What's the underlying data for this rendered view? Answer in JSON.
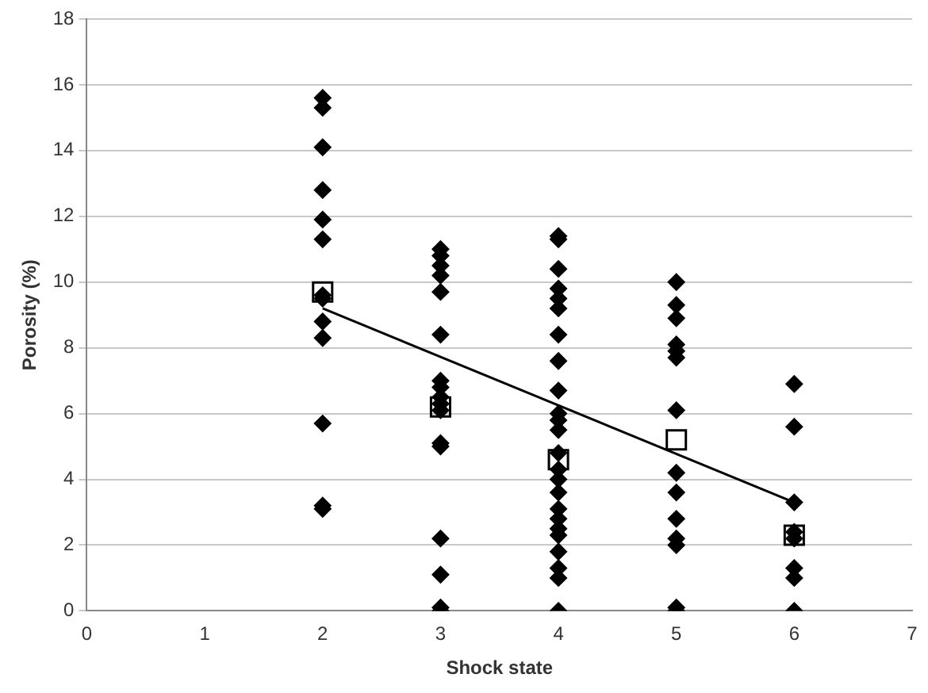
{
  "chart_data": {
    "type": "scatter",
    "xlabel": "Shock state",
    "ylabel": "Porosity (%)",
    "xlim": [
      0,
      7
    ],
    "xticks": [
      0,
      1,
      2,
      3,
      4,
      5,
      6,
      7
    ],
    "ylim": [
      0,
      18
    ],
    "yticks": [
      0,
      2,
      4,
      6,
      8,
      10,
      12,
      14,
      16,
      18
    ],
    "grid": "y",
    "legend": false,
    "series": [
      {
        "marker": "diamond",
        "color": "#000000",
        "x": [
          2,
          2,
          2,
          2,
          2,
          2,
          2,
          2,
          2,
          2,
          2,
          2,
          2,
          3,
          3,
          3,
          3,
          3,
          3,
          3,
          3,
          3,
          3,
          3,
          3,
          3,
          3,
          3,
          3,
          3,
          4,
          4,
          4,
          4,
          4,
          4,
          4,
          4,
          4,
          4,
          4,
          4,
          4,
          4,
          4,
          4,
          4,
          4,
          4,
          4,
          4,
          4,
          4,
          4,
          5,
          5,
          5,
          5,
          5,
          5,
          5,
          5,
          5,
          5,
          5,
          5,
          5,
          5,
          6,
          6,
          6,
          6,
          6,
          6,
          6,
          6
        ],
        "values": [
          15.6,
          15.3,
          14.1,
          12.8,
          11.9,
          11.3,
          9.6,
          9.5,
          8.8,
          8.3,
          5.7,
          3.2,
          3.1,
          11.0,
          10.8,
          10.5,
          10.2,
          9.7,
          8.4,
          7.0,
          6.8,
          6.5,
          6.3,
          6.1,
          5.1,
          5.0,
          2.2,
          1.1,
          0.1,
          0.0,
          11.4,
          11.3,
          10.4,
          9.8,
          9.5,
          9.2,
          8.4,
          7.6,
          6.7,
          6.0,
          5.8,
          5.5,
          4.8,
          4.3,
          4.0,
          3.6,
          3.1,
          2.8,
          2.5,
          2.3,
          1.8,
          1.3,
          1.0,
          0.0,
          10.0,
          9.3,
          8.9,
          8.1,
          7.9,
          7.7,
          6.1,
          4.2,
          3.6,
          2.8,
          2.2,
          2.0,
          0.1,
          0.0,
          6.9,
          5.6,
          3.3,
          2.4,
          2.2,
          1.3,
          1.0,
          0.0
        ]
      },
      {
        "marker": "square",
        "color": "#000000",
        "x": [
          2,
          3,
          4,
          5,
          6
        ],
        "values": [
          9.7,
          6.2,
          4.6,
          5.2,
          2.3
        ]
      },
      {
        "type": "line",
        "marker": "none",
        "color": "#000000",
        "x": [
          2,
          6
        ],
        "values": [
          9.2,
          3.3
        ]
      }
    ]
  }
}
